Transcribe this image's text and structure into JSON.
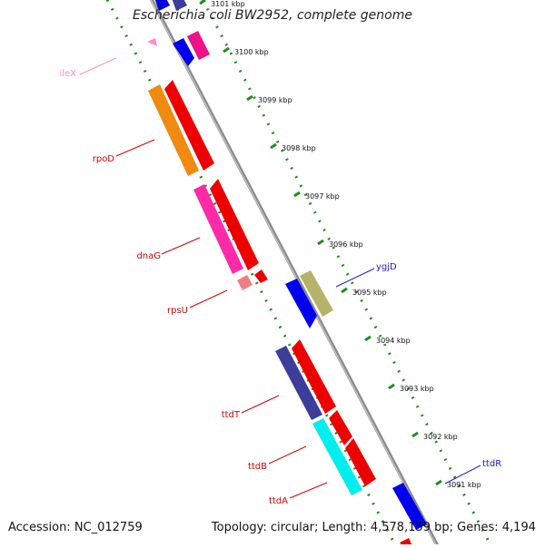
{
  "header": {
    "title": "Escherichia coli BW2952, complete genome"
  },
  "footer": {
    "accession": "Accession: NC_012759",
    "topology": "Topology: circular; Length: 4,578,159 bp; Genes: 4,194"
  },
  "colors": {
    "backbone": "#8c8c8c",
    "tick": "#228b22",
    "label_red": "#d40000",
    "label_blue": "#1a1ad4",
    "label_pink": "#ff88cc"
  },
  "ticks": [
    {
      "label": "3101 kbp"
    },
    {
      "label": "3100 kbp"
    },
    {
      "label": "3099 kbp"
    },
    {
      "label": "3098 kbp"
    },
    {
      "label": "3097 kbp"
    },
    {
      "label": "3096 kbp"
    },
    {
      "label": "3095 kbp"
    },
    {
      "label": "3094 kbp"
    },
    {
      "label": "3093 kbp"
    },
    {
      "label": "3092 kbp"
    },
    {
      "label": "3091 kbp"
    }
  ],
  "gene_labels": [
    {
      "name": "ileX",
      "color_key": "label_pink"
    },
    {
      "name": "rpoD",
      "color_key": "label_red"
    },
    {
      "name": "dnaG",
      "color_key": "label_red"
    },
    {
      "name": "rpsU",
      "color_key": "label_red"
    },
    {
      "name": "ygjD",
      "color_key": "label_blue"
    },
    {
      "name": "ttdT",
      "color_key": "label_red"
    },
    {
      "name": "ttdB",
      "color_key": "label_red"
    },
    {
      "name": "ttdA",
      "color_key": "label_red"
    },
    {
      "name": "ttdR",
      "color_key": "label_blue"
    }
  ]
}
